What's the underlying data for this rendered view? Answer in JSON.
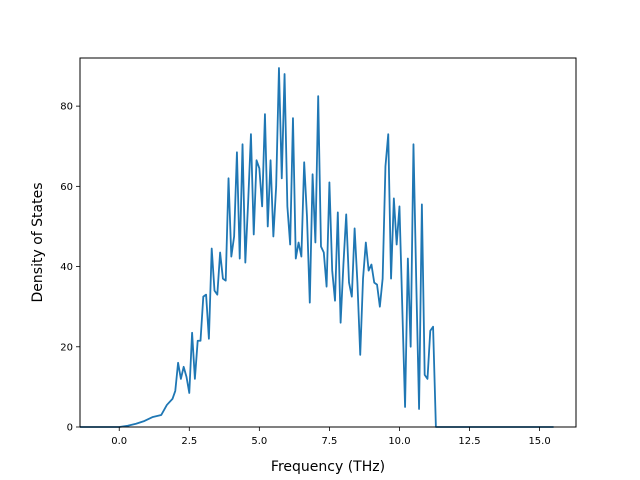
{
  "chart_data": {
    "type": "line",
    "title": "",
    "xlabel": "Frequency (THz)",
    "ylabel": "Density of States",
    "xlim": [
      -1.4,
      16.3
    ],
    "ylim": [
      0,
      92
    ],
    "grid": false,
    "legend": "none",
    "line_color": "#1f77b4",
    "xticks": [
      {
        "value": 0.0,
        "label": "0.0"
      },
      {
        "value": 2.5,
        "label": "2.5"
      },
      {
        "value": 5.0,
        "label": "5.0"
      },
      {
        "value": 7.5,
        "label": "7.5"
      },
      {
        "value": 10.0,
        "label": "10.0"
      },
      {
        "value": 12.5,
        "label": "12.5"
      },
      {
        "value": 15.0,
        "label": "15.0"
      }
    ],
    "yticks": [
      {
        "value": 0,
        "label": "0"
      },
      {
        "value": 20,
        "label": "20"
      },
      {
        "value": 40,
        "label": "40"
      },
      {
        "value": 60,
        "label": "60"
      },
      {
        "value": 80,
        "label": "80"
      }
    ],
    "series": [
      {
        "x": [
          -1.4,
          -0.5,
          0.0,
          0.3,
          0.6,
          0.9,
          1.2,
          1.5,
          1.7,
          1.9,
          2.0,
          2.1,
          2.2,
          2.3,
          2.4,
          2.5,
          2.6,
          2.7,
          2.8,
          2.9,
          3.0,
          3.1,
          3.2,
          3.3,
          3.4,
          3.5,
          3.6,
          3.7,
          3.8,
          3.9,
          4.0,
          4.1,
          4.2,
          4.3,
          4.4,
          4.5,
          4.6,
          4.7,
          4.8,
          4.9,
          5.0,
          5.1,
          5.2,
          5.3,
          5.4,
          5.5,
          5.6,
          5.7,
          5.8,
          5.9,
          6.0,
          6.1,
          6.2,
          6.3,
          6.4,
          6.5,
          6.6,
          6.7,
          6.8,
          6.9,
          7.0,
          7.1,
          7.2,
          7.3,
          7.4,
          7.5,
          7.6,
          7.7,
          7.8,
          7.9,
          8.0,
          8.1,
          8.2,
          8.3,
          8.4,
          8.5,
          8.6,
          8.7,
          8.8,
          8.9,
          9.0,
          9.1,
          9.2,
          9.3,
          9.4,
          9.5,
          9.6,
          9.7,
          9.8,
          9.9,
          10.0,
          10.1,
          10.2,
          10.3,
          10.4,
          10.5,
          10.6,
          10.7,
          10.8,
          10.9,
          11.0,
          11.1,
          11.2,
          11.3,
          11.4,
          11.5,
          11.6,
          11.7,
          11.8,
          11.9,
          12.0,
          12.1,
          12.2,
          12.3,
          12.4,
          12.5,
          12.6,
          12.7,
          12.8,
          13.0,
          14.0,
          15.5
        ],
        "y": [
          0,
          0,
          0,
          0.3,
          0.8,
          1.5,
          2.5,
          3.0,
          5.5,
          7.0,
          9.0,
          16.0,
          12.0,
          15.0,
          12.5,
          8.5,
          23.5,
          12.0,
          21.5,
          21.5,
          32.5,
          33.0,
          22.0,
          44.5,
          34.0,
          33.0,
          43.5,
          37.0,
          36.5,
          62.0,
          42.5,
          47.5,
          68.5,
          42.0,
          70.5,
          41.0,
          56.0,
          73.0,
          48.0,
          66.5,
          64.5,
          55.0,
          78.0,
          50.0,
          66.5,
          47.5,
          60.0,
          89.5,
          62.0,
          88.0,
          55.0,
          45.5,
          77.0,
          42.0,
          46.0,
          42.5,
          66.0,
          52.5,
          31.0,
          63.0,
          46.0,
          82.5,
          45.0,
          43.5,
          35.0,
          61.0,
          39.0,
          31.5,
          53.5,
          26.0,
          40.5,
          53.0,
          36.0,
          32.5,
          49.5,
          36.0,
          18.0,
          37.0,
          46.0,
          39.0,
          40.5,
          36.0,
          35.5,
          30.0,
          37.0,
          65.0,
          73.0,
          37.0,
          57.0,
          45.5,
          55.0,
          30.0,
          5.0,
          42.0,
          20.0,
          70.5,
          36.0,
          4.5,
          55.5,
          13.0,
          12.0,
          24.0,
          25.0,
          0,
          0,
          0,
          0,
          0,
          0,
          0,
          0,
          0,
          0,
          0,
          0,
          0,
          0,
          0,
          0,
          0,
          0,
          0
        ],
        "note": ""
      }
    ]
  }
}
